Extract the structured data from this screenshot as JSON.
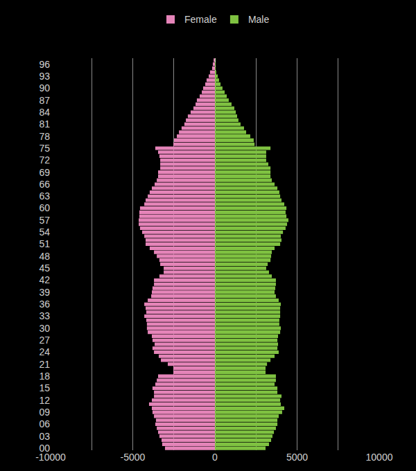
{
  "chart_data": {
    "type": "bar",
    "orientation": "horizontal",
    "grid": true,
    "legend": "top",
    "categories": [
      "00",
      null,
      null,
      "03",
      null,
      null,
      "06",
      null,
      null,
      "09",
      null,
      null,
      "12",
      null,
      null,
      "15",
      null,
      null,
      "18",
      null,
      null,
      "21",
      null,
      null,
      "24",
      null,
      null,
      "27",
      null,
      null,
      "30",
      null,
      null,
      "33",
      null,
      null,
      "36",
      null,
      null,
      "39",
      null,
      null,
      "42",
      null,
      null,
      "45",
      null,
      null,
      "48",
      null,
      null,
      "51",
      null,
      null,
      "54",
      null,
      null,
      "57",
      null,
      null,
      "60",
      null,
      null,
      "63",
      null,
      null,
      "66",
      null,
      null,
      "69",
      null,
      null,
      "72",
      null,
      null,
      "75",
      null,
      null,
      "78",
      null,
      null,
      "81",
      null,
      null,
      "84",
      null,
      null,
      "87",
      null,
      null,
      "90",
      null,
      null,
      "93",
      null,
      null,
      "96",
      null
    ],
    "xlim": [
      -10000,
      10000
    ],
    "xticks": [
      -10000,
      -5000,
      0,
      5000,
      10000
    ],
    "series": [
      {
        "name": "Female",
        "color": "#e584b9",
        "values": [
          -3040,
          -3210,
          -3250,
          -3380,
          -3460,
          -3540,
          -3630,
          -3590,
          -3710,
          -3800,
          -3840,
          -4010,
          -3840,
          -3710,
          -3710,
          -3800,
          -3630,
          -3540,
          -3460,
          -2530,
          -2530,
          -2870,
          -3290,
          -3420,
          -3710,
          -3800,
          -3670,
          -3800,
          -3840,
          -4090,
          -4140,
          -4140,
          -4180,
          -4300,
          -4180,
          -4220,
          -4300,
          -4090,
          -3880,
          -3840,
          -3800,
          -3710,
          -3710,
          -3380,
          -3120,
          -3120,
          -3330,
          -3380,
          -3540,
          -3710,
          -3970,
          -4220,
          -4220,
          -4300,
          -4430,
          -4560,
          -4640,
          -4640,
          -4600,
          -4600,
          -4560,
          -4300,
          -4220,
          -4090,
          -3970,
          -3840,
          -3670,
          -3540,
          -3460,
          -3460,
          -3330,
          -3330,
          -3330,
          -3380,
          -3460,
          -3630,
          -2530,
          -2490,
          -2320,
          -2190,
          -2030,
          -1860,
          -1770,
          -1650,
          -1480,
          -1310,
          -1180,
          -1100,
          -930,
          -800,
          -720,
          -590,
          -510,
          -380,
          -300,
          -170,
          -130,
          -80
        ]
      },
      {
        "name": "Male",
        "color": "#7fc241",
        "values": [
          3080,
          3290,
          3420,
          3500,
          3590,
          3710,
          3800,
          3800,
          3880,
          4090,
          4220,
          4010,
          3970,
          4050,
          3800,
          3800,
          3630,
          3710,
          3710,
          3080,
          3080,
          3170,
          3380,
          3630,
          3880,
          3800,
          3840,
          3800,
          3840,
          3970,
          4010,
          3920,
          3920,
          3970,
          3970,
          3970,
          4010,
          3880,
          3710,
          3630,
          3670,
          3710,
          3710,
          3460,
          3290,
          3120,
          3210,
          3380,
          3420,
          3460,
          3630,
          3970,
          4050,
          4010,
          4140,
          4300,
          4390,
          4470,
          4350,
          4300,
          4350,
          4220,
          4050,
          3970,
          3920,
          3800,
          3630,
          3460,
          3380,
          3380,
          3380,
          3250,
          3120,
          3120,
          3120,
          3380,
          2410,
          2360,
          2150,
          1900,
          1770,
          1560,
          1430,
          1350,
          1270,
          1180,
          1010,
          840,
          720,
          590,
          460,
          340,
          250,
          170,
          80,
          40,
          40,
          20
        ]
      }
    ]
  }
}
